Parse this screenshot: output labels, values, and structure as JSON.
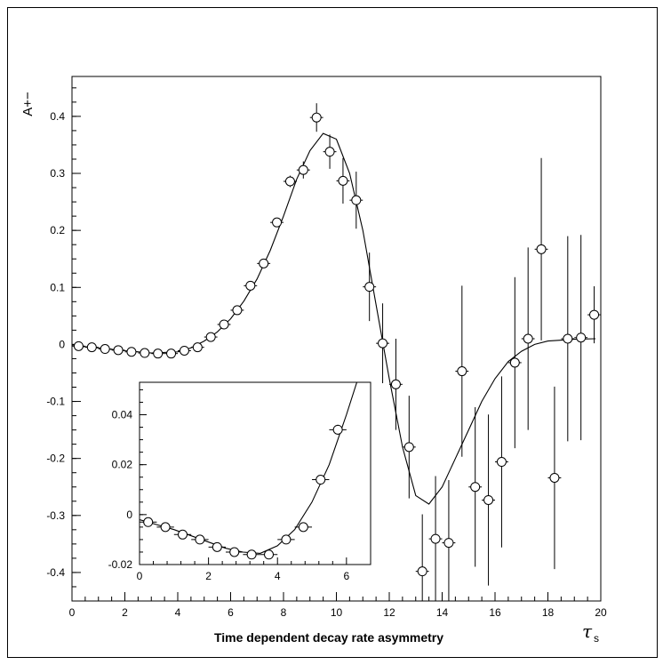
{
  "chart_data": [
    {
      "type": "scatter",
      "role": "main",
      "title": "",
      "caption": "Time dependent decay rate asymmetry",
      "ylabel": "A+−",
      "xlabel": "τ",
      "xlabel_subscript": "s",
      "xlim": [
        0,
        20
      ],
      "ylim": [
        -0.45,
        0.47
      ],
      "xticks": [
        0,
        2,
        4,
        6,
        8,
        10,
        12,
        14,
        16,
        18,
        20
      ],
      "xtick_labels": [
        "0",
        "2",
        "4",
        "6",
        "8",
        "10",
        "12",
        "14",
        "16",
        "18",
        "20"
      ],
      "yticks": [
        -0.4,
        -0.3,
        -0.2,
        -0.1,
        0,
        0.1,
        0.2,
        0.3,
        0.4
      ],
      "ytick_labels": [
        "-0.4",
        "-0.3",
        "-0.2",
        "-0.1",
        "0",
        "0.1",
        "0.2",
        "0.3",
        "0.4"
      ],
      "grid": false,
      "points": [
        {
          "x": 0.25,
          "y": -0.003,
          "err": 0.001
        },
        {
          "x": 0.75,
          "y": -0.005,
          "err": 0.001
        },
        {
          "x": 1.25,
          "y": -0.008,
          "err": 0.001
        },
        {
          "x": 1.75,
          "y": -0.01,
          "err": 0.001
        },
        {
          "x": 2.25,
          "y": -0.013,
          "err": 0.001
        },
        {
          "x": 2.75,
          "y": -0.015,
          "err": 0.001
        },
        {
          "x": 3.25,
          "y": -0.016,
          "err": 0.001
        },
        {
          "x": 3.75,
          "y": -0.016,
          "err": 0.001
        },
        {
          "x": 4.25,
          "y": -0.011,
          "err": 0.001
        },
        {
          "x": 4.75,
          "y": -0.005,
          "err": 0.002
        },
        {
          "x": 5.25,
          "y": 0.013,
          "err": 0.002
        },
        {
          "x": 5.75,
          "y": 0.035,
          "err": 0.003
        },
        {
          "x": 6.25,
          "y": 0.06,
          "err": 0.004
        },
        {
          "x": 6.75,
          "y": 0.103,
          "err": 0.005
        },
        {
          "x": 7.25,
          "y": 0.142,
          "err": 0.006
        },
        {
          "x": 7.75,
          "y": 0.214,
          "err": 0.008
        },
        {
          "x": 8.25,
          "y": 0.286,
          "err": 0.01
        },
        {
          "x": 8.75,
          "y": 0.306,
          "err": 0.015
        },
        {
          "x": 9.25,
          "y": 0.398,
          "err": 0.025
        },
        {
          "x": 9.75,
          "y": 0.338,
          "err": 0.03
        },
        {
          "x": 10.25,
          "y": 0.287,
          "err": 0.04
        },
        {
          "x": 10.75,
          "y": 0.253,
          "err": 0.05
        },
        {
          "x": 11.25,
          "y": 0.101,
          "err": 0.06
        },
        {
          "x": 11.75,
          "y": 0.002,
          "err": 0.07
        },
        {
          "x": 12.25,
          "y": -0.07,
          "err": 0.08
        },
        {
          "x": 12.75,
          "y": -0.18,
          "err": 0.09
        },
        {
          "x": 13.25,
          "y": -0.398,
          "err": 0.1
        },
        {
          "x": 13.75,
          "y": -0.341,
          "err": 0.11
        },
        {
          "x": 14.25,
          "y": -0.348,
          "err": 0.11
        },
        {
          "x": 14.75,
          "y": -0.047,
          "err": 0.15
        },
        {
          "x": 15.25,
          "y": -0.25,
          "err": 0.14
        },
        {
          "x": 15.75,
          "y": -0.273,
          "err": 0.15
        },
        {
          "x": 16.25,
          "y": -0.206,
          "err": 0.15
        },
        {
          "x": 16.75,
          "y": -0.032,
          "err": 0.15
        },
        {
          "x": 17.25,
          "y": 0.01,
          "err": 0.16
        },
        {
          "x": 17.75,
          "y": 0.167,
          "err": 0.16
        },
        {
          "x": 18.25,
          "y": -0.234,
          "err": 0.16
        },
        {
          "x": 18.75,
          "y": 0.01,
          "err": 0.18
        },
        {
          "x": 19.25,
          "y": 0.012,
          "err": 0.18
        },
        {
          "x": 19.75,
          "y": 0.052,
          "err": 0.05
        }
      ],
      "curve": [
        [
          0,
          -0.002
        ],
        [
          1,
          -0.006
        ],
        [
          2,
          -0.011
        ],
        [
          3,
          -0.015
        ],
        [
          4,
          -0.013
        ],
        [
          4.5,
          -0.006
        ],
        [
          5,
          0.006
        ],
        [
          5.5,
          0.022
        ],
        [
          6,
          0.045
        ],
        [
          6.5,
          0.076
        ],
        [
          7,
          0.115
        ],
        [
          7.5,
          0.165
        ],
        [
          8,
          0.225
        ],
        [
          8.5,
          0.29
        ],
        [
          9,
          0.34
        ],
        [
          9.5,
          0.37
        ],
        [
          10,
          0.36
        ],
        [
          10.5,
          0.3
        ],
        [
          11,
          0.2
        ],
        [
          11.5,
          0.07
        ],
        [
          12,
          -0.06
        ],
        [
          12.5,
          -0.18
        ],
        [
          13,
          -0.265
        ],
        [
          13.5,
          -0.28
        ],
        [
          14,
          -0.25
        ],
        [
          14.5,
          -0.2
        ],
        [
          15,
          -0.15
        ],
        [
          15.5,
          -0.1
        ],
        [
          16,
          -0.06
        ],
        [
          16.5,
          -0.03
        ],
        [
          17,
          -0.012
        ],
        [
          17.5,
          0.0
        ],
        [
          18,
          0.006
        ],
        [
          19,
          0.009
        ],
        [
          19.8,
          0.01
        ]
      ]
    },
    {
      "type": "scatter",
      "role": "inset",
      "xlim": [
        0,
        6.7
      ],
      "ylim": [
        -0.02,
        0.053
      ],
      "xticks": [
        0,
        2,
        4,
        6
      ],
      "xtick_labels": [
        "0",
        "2",
        "4",
        "6"
      ],
      "yticks": [
        -0.02,
        0,
        0.02,
        0.04
      ],
      "ytick_labels": [
        "-0.02",
        "0",
        "0.02",
        "0.04"
      ],
      "grid": false,
      "points": [
        {
          "x": 0.25,
          "y": -0.003,
          "err": 0.001
        },
        {
          "x": 0.75,
          "y": -0.005,
          "err": 0.001
        },
        {
          "x": 1.25,
          "y": -0.008,
          "err": 0.001
        },
        {
          "x": 1.75,
          "y": -0.01,
          "err": 0.001
        },
        {
          "x": 2.25,
          "y": -0.013,
          "err": 0.001
        },
        {
          "x": 2.75,
          "y": -0.015,
          "err": 0.001
        },
        {
          "x": 3.25,
          "y": -0.016,
          "err": 0.001
        },
        {
          "x": 3.75,
          "y": -0.016,
          "err": 0.001
        },
        {
          "x": 4.25,
          "y": -0.01,
          "err": 0.001
        },
        {
          "x": 4.75,
          "y": -0.005,
          "err": 0.0015
        },
        {
          "x": 5.25,
          "y": 0.014,
          "err": 0.0015
        },
        {
          "x": 5.75,
          "y": 0.034,
          "err": 0.002
        }
      ],
      "curve": [
        [
          0,
          -0.002
        ],
        [
          0.5,
          -0.004
        ],
        [
          1,
          -0.006
        ],
        [
          1.5,
          -0.0085
        ],
        [
          2,
          -0.011
        ],
        [
          2.5,
          -0.0135
        ],
        [
          3,
          -0.015
        ],
        [
          3.5,
          -0.0155
        ],
        [
          4,
          -0.0125
        ],
        [
          4.5,
          -0.006
        ],
        [
          5,
          0.005
        ],
        [
          5.5,
          0.02
        ],
        [
          6,
          0.04
        ],
        [
          6.3,
          0.053
        ]
      ]
    }
  ]
}
